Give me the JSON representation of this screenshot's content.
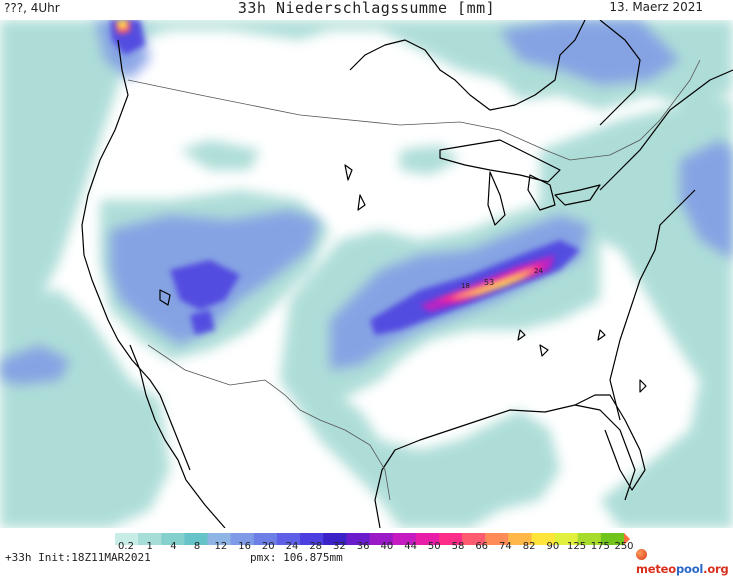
{
  "header": {
    "left": "???, 4Uhr",
    "title": "33h Niederschlagssumme [mm]",
    "date": "13. Maerz 2021"
  },
  "map_labels": {
    "peak_a": "53",
    "peak_b": "18",
    "peak_c": "24"
  },
  "colorbar": {
    "ticks": [
      "0.2",
      "1",
      "4",
      "8",
      "12",
      "16",
      "20",
      "24",
      "28",
      "32",
      "36",
      "40",
      "44",
      "50",
      "58",
      "66",
      "74",
      "82",
      "90",
      "125",
      "175",
      "250"
    ],
    "colors": [
      "#c8ece6",
      "#a6ddd6",
      "#84d0cc",
      "#66c4c8",
      "#8fb4e6",
      "#7f9ae6",
      "#6d7ee6",
      "#5d5fe6",
      "#4c3ee0",
      "#3a22c8",
      "#6a1ccc",
      "#9a1ac8",
      "#c41cc0",
      "#e81ea8",
      "#ff2d8a",
      "#ff5b70",
      "#ff8b58",
      "#ffb848",
      "#ffe43c",
      "#e0f03c",
      "#a8dc2c",
      "#70c41c",
      "#ff7040"
    ]
  },
  "footer": {
    "run": "+33h Init:18Z11MAR2021",
    "pmx": "pmx: 106.875mm",
    "logo_a": "meteo",
    "logo_b": "pool",
    "logo_c": ".org"
  },
  "colors": {
    "coast": "#000000",
    "border": "#555555",
    "logo_a": "#d8301e",
    "logo_b": "#2a68c8"
  }
}
